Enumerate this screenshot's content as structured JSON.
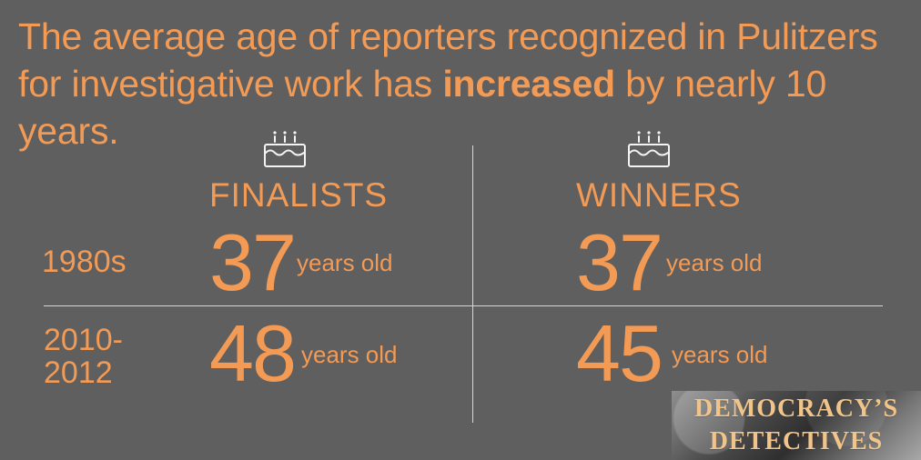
{
  "headline": {
    "before": "The average age of reporters recognized in Pulitzers for investigative work has ",
    "emphasis": "increased",
    "after": " by nearly 10 years."
  },
  "columns": {
    "finalists": "FINALISTS",
    "winners": "WINNERS"
  },
  "rows": {
    "r1980s": "1980s",
    "r2010": "2010-\n2012"
  },
  "values": {
    "finalists_1980s": "37",
    "winners_1980s": "37",
    "finalists_2010": "48",
    "winners_2010": "45"
  },
  "units": {
    "years_old": "years old"
  },
  "logo": {
    "line1": "DEMOCRACY’S",
    "line2": "DETECTIVES"
  },
  "colors": {
    "background": "#5f5f5f",
    "accent": "#f39a55",
    "divider": "#d7d7d7"
  },
  "icons": {
    "finalists": "birthday-cake-icon",
    "winners": "birthday-cake-icon"
  }
}
